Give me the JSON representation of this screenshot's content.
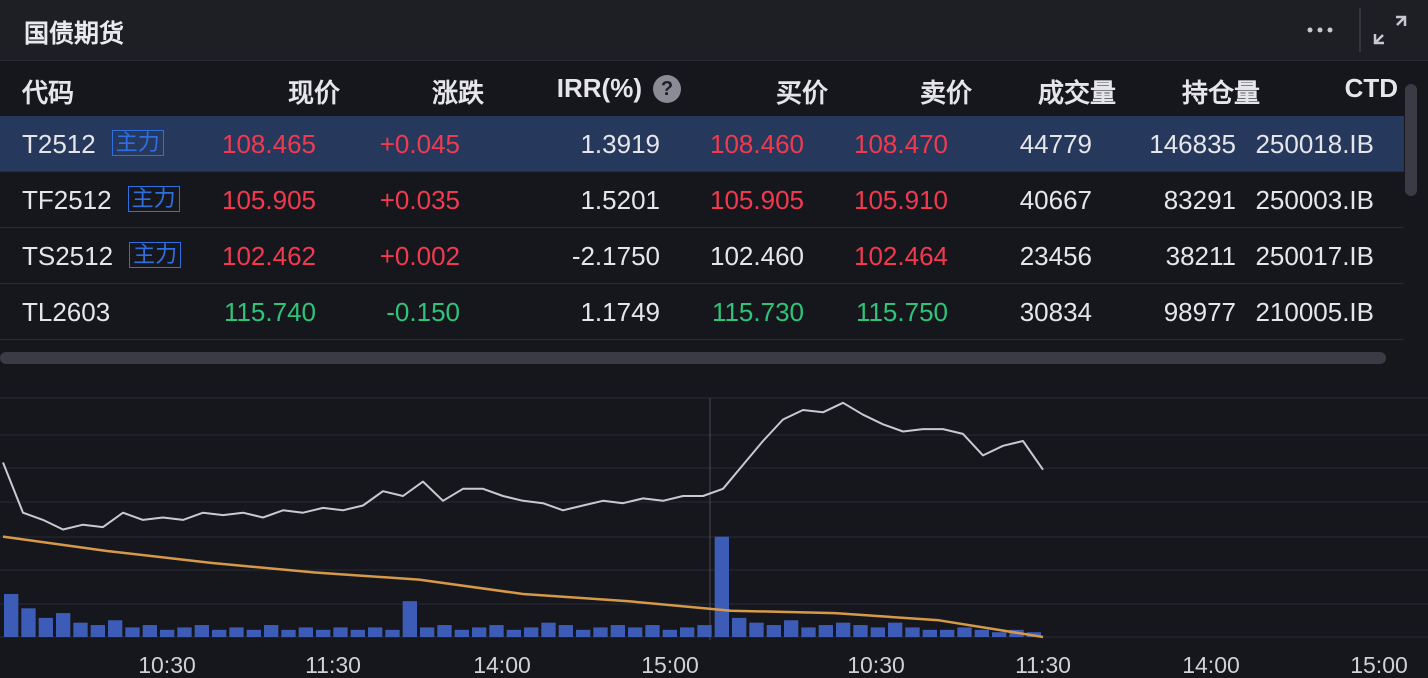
{
  "header": {
    "title": "国债期货"
  },
  "table": {
    "columns": [
      "代码",
      "现价",
      "涨跌",
      "IRR(%)",
      "买价",
      "卖价",
      "成交量",
      "持仓量",
      "CTD"
    ],
    "rows": [
      {
        "code": "T2512",
        "tag": "主力",
        "selected": true,
        "cells": [
          "108.465",
          "+0.045",
          "1.3919",
          "108.460",
          "108.470",
          "44779",
          "146835",
          "250018.IB"
        ],
        "tones": [
          "up",
          "up",
          "flat",
          "up",
          "up",
          "flat",
          "flat",
          "flat"
        ]
      },
      {
        "code": "TF2512",
        "tag": "主力",
        "cells": [
          "105.905",
          "+0.035",
          "1.5201",
          "105.905",
          "105.910",
          "40667",
          "83291",
          "250003.IB"
        ],
        "tones": [
          "up",
          "up",
          "flat",
          "up",
          "up",
          "flat",
          "flat",
          "flat"
        ]
      },
      {
        "code": "TS2512",
        "tag": "主力",
        "cells": [
          "102.462",
          "+0.002",
          "-2.1750",
          "102.460",
          "102.464",
          "23456",
          "38211",
          "250017.IB"
        ],
        "tones": [
          "up",
          "up",
          "flat",
          "flat",
          "up",
          "flat",
          "flat",
          "flat"
        ]
      },
      {
        "code": "TL2603",
        "cells": [
          "115.740",
          "-0.150",
          "1.1749",
          "115.730",
          "115.750",
          "30834",
          "98977",
          "210005.IB"
        ],
        "tones": [
          "down",
          "down",
          "flat",
          "down",
          "down",
          "flat",
          "flat",
          "flat"
        ]
      }
    ]
  },
  "chart_data": {
    "type": "line",
    "x_labels": [
      "10:30",
      "11:30",
      "14:00",
      "15:00",
      "10:30",
      "11:30",
      "14:00",
      "15:00"
    ],
    "ylim": [
      0,
      100
    ],
    "price": {
      "color": "#c9c9d2",
      "values": [
        73,
        52,
        49,
        45,
        47,
        46,
        52,
        49,
        50,
        49,
        52,
        51,
        52,
        50,
        53,
        52,
        54,
        53,
        55,
        61,
        59,
        65,
        57,
        62,
        62,
        59,
        57,
        56,
        53,
        55,
        57,
        56,
        58,
        57,
        59,
        59,
        62,
        72,
        82,
        91,
        95,
        94,
        98,
        93,
        89,
        86,
        87,
        87,
        85,
        76,
        80,
        82,
        70
      ]
    },
    "average": {
      "color": "#d6994a",
      "values": [
        42,
        36,
        31,
        27,
        24,
        18,
        15,
        11,
        10,
        7,
        0
      ]
    },
    "volume": {
      "color": "#3d5cb8",
      "values": [
        18,
        12,
        8,
        10,
        6,
        5,
        7,
        4,
        5,
        3,
        4,
        5,
        3,
        4,
        3,
        5,
        3,
        4,
        3,
        4,
        3,
        4,
        3,
        15,
        4,
        5,
        3,
        4,
        5,
        3,
        4,
        6,
        5,
        3,
        4,
        5,
        4,
        5,
        3,
        4,
        5,
        42,
        8,
        6,
        5,
        7,
        4,
        5,
        6,
        5,
        4,
        6,
        4,
        3,
        3,
        4,
        3,
        2,
        3,
        2
      ]
    }
  }
}
